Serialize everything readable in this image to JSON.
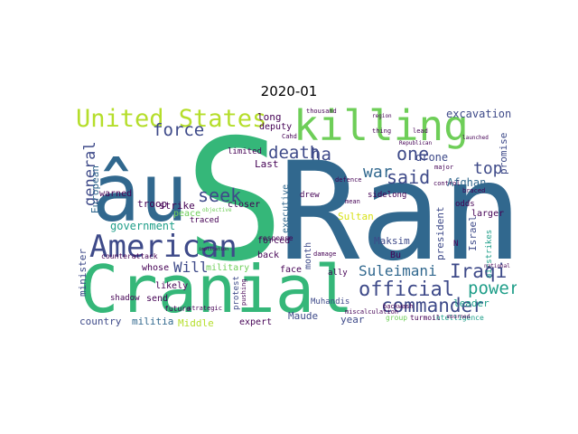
{
  "figure": {
    "title": "2020-01"
  },
  "palette": {
    "purple": "#440154",
    "indigo": "#3e4a89",
    "blue": "#31688e",
    "teal": "#26828e",
    "teal_green": "#1f9e89",
    "green": "#35b779",
    "light_green": "#6ece58",
    "yellow_green": "#b5de2b",
    "yellow": "#d8e219"
  },
  "words": {
    "s": "S",
    "ran": "Ran",
    "cranial": "Cranial",
    "au": "âu",
    "killing": "killing",
    "american": "American",
    "united_states": "United States",
    "official": "official",
    "commander": "commander",
    "suleimani": "Suleimani",
    "iraqi": "Iraqi",
    "power": "power",
    "death": "death",
    "ha": "ha",
    "one": "one",
    "said": "said",
    "war": "war",
    "top": "top",
    "seek": "seek",
    "force": "force",
    "general": "general",
    "will": "Will",
    "government": "government",
    "european": "European",
    "minister": "minister",
    "troop": "troop",
    "strike": "strike",
    "peace": "peace",
    "warned": "warned",
    "country": "country",
    "militia": "militia",
    "middle": "Middle",
    "maude": "Maude",
    "year": "year",
    "leader": "leader",
    "excavation": "excavation",
    "drone": "drone",
    "afghan": "Afghan",
    "promise": "promise",
    "long": "long",
    "last": "Last",
    "deputy": "deputy",
    "executive": "executive",
    "month": "month",
    "sultan": "Sultan",
    "maksim": "Maksim",
    "president": "president",
    "israel": "Israel",
    "larger": "larger",
    "bu": "Bu",
    "military": "military",
    "face": "face",
    "back": "back",
    "forced": "forced",
    "whose": "whose",
    "likely": "likely",
    "send": "send",
    "shadow": "shadow",
    "expert": "expert",
    "protest": "protest",
    "muhandis": "Muhandis",
    "ally": "ally",
    "counterattack": "counterattack",
    "closer": "closer",
    "traced": "traced",
    "limited": "limited",
    "response": "response",
    "drew": "drew",
    "odds": "odds",
    "sidelong": "sidelong",
    "intelligence": "intelligence",
    "turmoil": "turmoil",
    "airstrikes": "airstrikes",
    "n": "N",
    "thousand": "thousand",
    "future": "future",
    "pushing": "pushing",
    "group": "group",
    "major": "major",
    "control": "control",
    "thing": "thing",
    "lead": "lead",
    "cahd": "Cahd",
    "defence": "defence",
    "damage": "damage",
    "strategic": "strategic",
    "mean": "mean",
    "launched": "launched",
    "miscalculation": "miscalculation",
    "backwash": "backwash",
    "mourned": "mourned",
    "braced": "braced",
    "national": "national",
    "objective": "objective",
    "implication": "implication",
    "region": "region",
    "republican": "Republican"
  }
}
